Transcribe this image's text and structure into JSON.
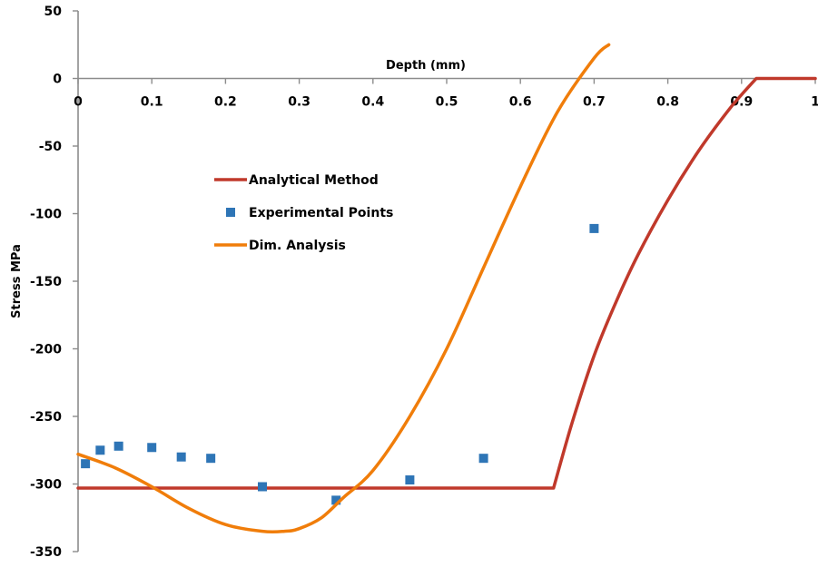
{
  "chart_data": {
    "type": "line",
    "xlabel": "Depth (mm)",
    "ylabel": "Stress MPa",
    "xlim": [
      0,
      1
    ],
    "ylim": [
      -350,
      50
    ],
    "x_ticks": [
      "0",
      "0.1",
      "0.2",
      "0.3",
      "0.4",
      "0.5",
      "0.6",
      "0.7",
      "0.8",
      "0.9",
      "1"
    ],
    "y_ticks": [
      "50",
      "0",
      "-50",
      "-100",
      "-150",
      "-200",
      "-250",
      "-300",
      "-350"
    ],
    "legend_position": "center-left",
    "series": [
      {
        "name": "Analytical Method",
        "style": "line",
        "color": "#c0392b",
        "x": [
          0,
          0.1,
          0.2,
          0.3,
          0.4,
          0.5,
          0.6,
          0.645,
          0.67,
          0.7,
          0.73,
          0.76,
          0.8,
          0.84,
          0.88,
          0.9,
          0.92,
          0.93,
          1.0
        ],
        "y": [
          -303,
          -303,
          -303,
          -303,
          -303,
          -303,
          -303,
          -303,
          -255,
          -205,
          -165,
          -130,
          -90,
          -55,
          -25,
          -12,
          0,
          0,
          0
        ]
      },
      {
        "name": "Experimental Points",
        "style": "marker",
        "color": "#2e75b6",
        "x": [
          0.01,
          0.03,
          0.055,
          0.1,
          0.14,
          0.18,
          0.25,
          0.35,
          0.45,
          0.55,
          0.7
        ],
        "y": [
          -285,
          -275,
          -272,
          -273,
          -280,
          -281,
          -302,
          -312,
          -297,
          -281,
          -111
        ]
      },
      {
        "name": "Dim. Analysis",
        "style": "line",
        "color": "#f07d0a",
        "x": [
          0,
          0.05,
          0.1,
          0.15,
          0.2,
          0.25,
          0.28,
          0.3,
          0.33,
          0.36,
          0.4,
          0.45,
          0.5,
          0.55,
          0.6,
          0.65,
          0.7,
          0.72
        ],
        "y": [
          -278,
          -288,
          -302,
          -318,
          -330,
          -335,
          -335,
          -333,
          -325,
          -310,
          -290,
          -250,
          -200,
          -140,
          -80,
          -25,
          15,
          25
        ]
      }
    ]
  }
}
